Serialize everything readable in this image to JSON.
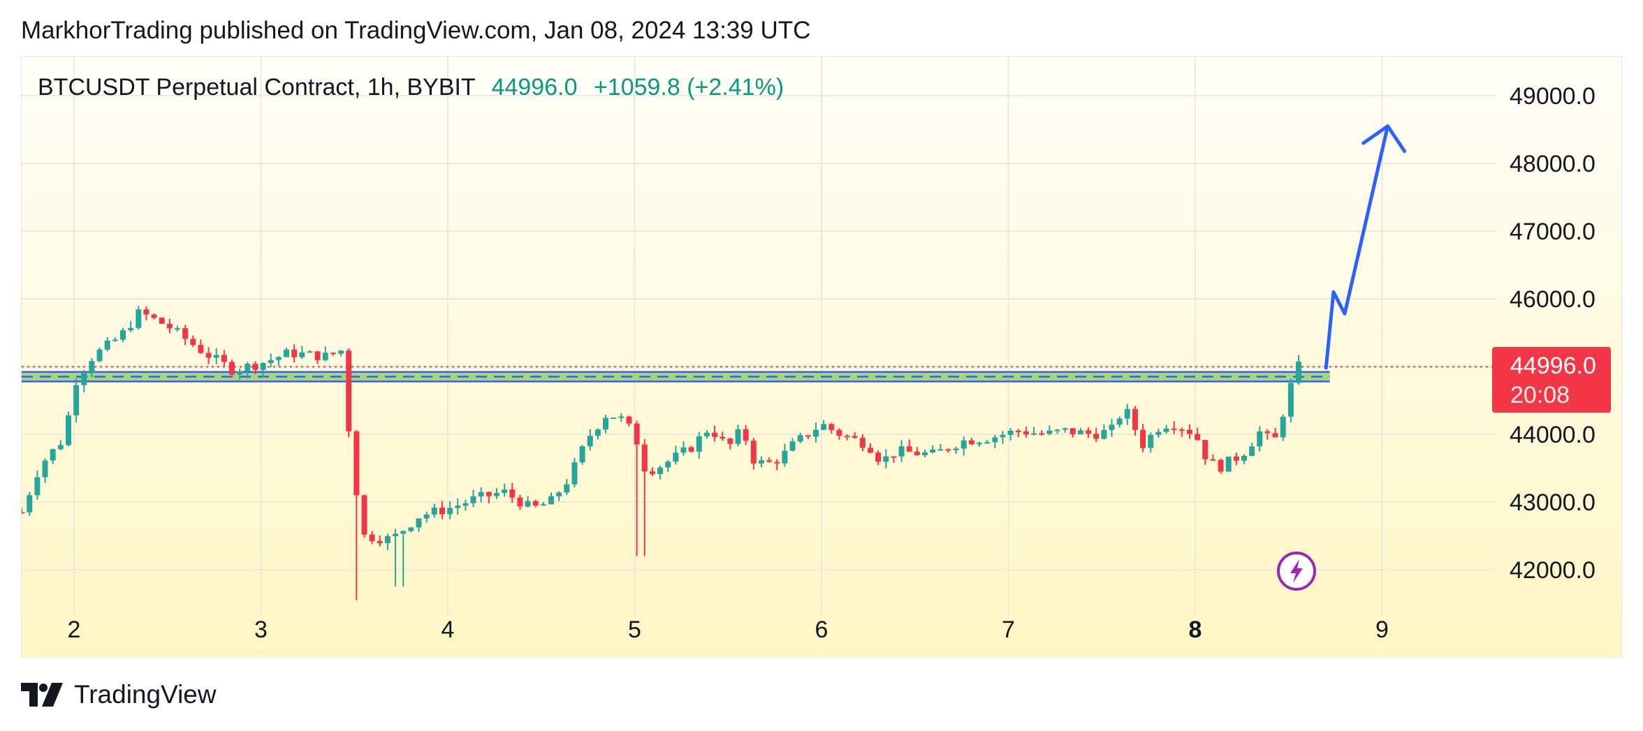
{
  "header": {
    "publish_text": "MarkhorTrading published on TradingView.com, Jan 08, 2024 13:39 UTC"
  },
  "legend": {
    "symbol": "BTCUSDT Perpetual Contract, 1h, BYBIT",
    "last": "44996.0",
    "change": "+1059.8 (+2.41%)"
  },
  "price_tag": {
    "price": "44996.0",
    "countdown": "20:08"
  },
  "footer": {
    "brand": "TradingView"
  },
  "icons": {
    "flash": "lightning-bolt-icon",
    "logo": "tradingview-logo-icon"
  },
  "colors": {
    "up": "#26a69a",
    "down": "#f23645",
    "arrow": "#2962ff",
    "zone_fill": "#9ccc65",
    "zone_line": "#2962ff",
    "bg_top": "#fffef8",
    "bg_bottom": "#fff6c4"
  },
  "chart_data": {
    "type": "candlestick",
    "interval": "1h",
    "yaxis": {
      "ticks": [
        42000,
        43000,
        44000,
        45000,
        46000,
        47000,
        48000,
        49000
      ],
      "tick_labels": [
        "42000.0",
        "43000.0",
        "44000.0",
        "46000.0",
        "47000.0",
        "48000.0",
        "49000.0"
      ],
      "range": [
        41500,
        49500
      ]
    },
    "xaxis": {
      "ticks": [
        2,
        3,
        4,
        5,
        6,
        7,
        8,
        9
      ],
      "tick_labels": [
        "2",
        "3",
        "4",
        "5",
        "6",
        "7",
        "8",
        "9"
      ],
      "bold_tick": "8",
      "range": [
        1.72,
        9.5
      ]
    },
    "last_price": 44996.0,
    "support_zone": {
      "from": 44780,
      "to": 44920
    },
    "projection_path": [
      [
        8.7,
        44980
      ],
      [
        8.74,
        46100
      ],
      [
        8.8,
        45780
      ],
      [
        9.03,
        48550
      ],
      [
        8.9,
        48300
      ],
      [
        9.03,
        48550
      ],
      [
        9.12,
        48180
      ]
    ],
    "anchors": [
      [
        1.72,
        42850
      ],
      [
        1.82,
        43550
      ],
      [
        1.95,
        43950
      ],
      [
        2.0,
        44750
      ],
      [
        2.1,
        45150
      ],
      [
        2.25,
        45450
      ],
      [
        2.35,
        45800
      ],
      [
        2.5,
        45600
      ],
      [
        2.7,
        45200
      ],
      [
        2.85,
        44950
      ],
      [
        3.0,
        45050
      ],
      [
        3.15,
        45200
      ],
      [
        3.35,
        45150
      ],
      [
        3.44,
        45250
      ],
      [
        3.48,
        43700
      ],
      [
        3.55,
        42500
      ],
      [
        3.7,
        42450
      ],
      [
        3.85,
        42800
      ],
      [
        4.0,
        42900
      ],
      [
        4.15,
        43050
      ],
      [
        4.3,
        43150
      ],
      [
        4.45,
        42900
      ],
      [
        4.55,
        43000
      ],
      [
        4.65,
        43350
      ],
      [
        4.75,
        43950
      ],
      [
        4.85,
        44300
      ],
      [
        4.92,
        44250
      ],
      [
        5.0,
        44000
      ],
      [
        5.06,
        43450
      ],
      [
        5.15,
        43550
      ],
      [
        5.3,
        43800
      ],
      [
        5.4,
        44100
      ],
      [
        5.5,
        43800
      ],
      [
        5.58,
        44100
      ],
      [
        5.62,
        43650
      ],
      [
        5.7,
        43550
      ],
      [
        5.78,
        43650
      ],
      [
        5.85,
        43850
      ],
      [
        6.0,
        44150
      ],
      [
        6.1,
        44000
      ],
      [
        6.25,
        43850
      ],
      [
        6.32,
        43600
      ],
      [
        6.4,
        43750
      ],
      [
        6.6,
        43700
      ],
      [
        6.75,
        43900
      ],
      [
        6.9,
        43950
      ],
      [
        7.05,
        44050
      ],
      [
        7.2,
        44000
      ],
      [
        7.3,
        44050
      ],
      [
        7.45,
        44000
      ],
      [
        7.55,
        44050
      ],
      [
        7.62,
        44400
      ],
      [
        7.72,
        43850
      ],
      [
        7.82,
        44150
      ],
      [
        7.9,
        44150
      ],
      [
        8.0,
        44000
      ],
      [
        8.06,
        43650
      ],
      [
        8.12,
        43500
      ],
      [
        8.25,
        43700
      ],
      [
        8.35,
        44050
      ],
      [
        8.42,
        43850
      ],
      [
        8.5,
        44600
      ],
      [
        8.54,
        45000
      ],
      [
        8.58,
        44996
      ]
    ]
  }
}
